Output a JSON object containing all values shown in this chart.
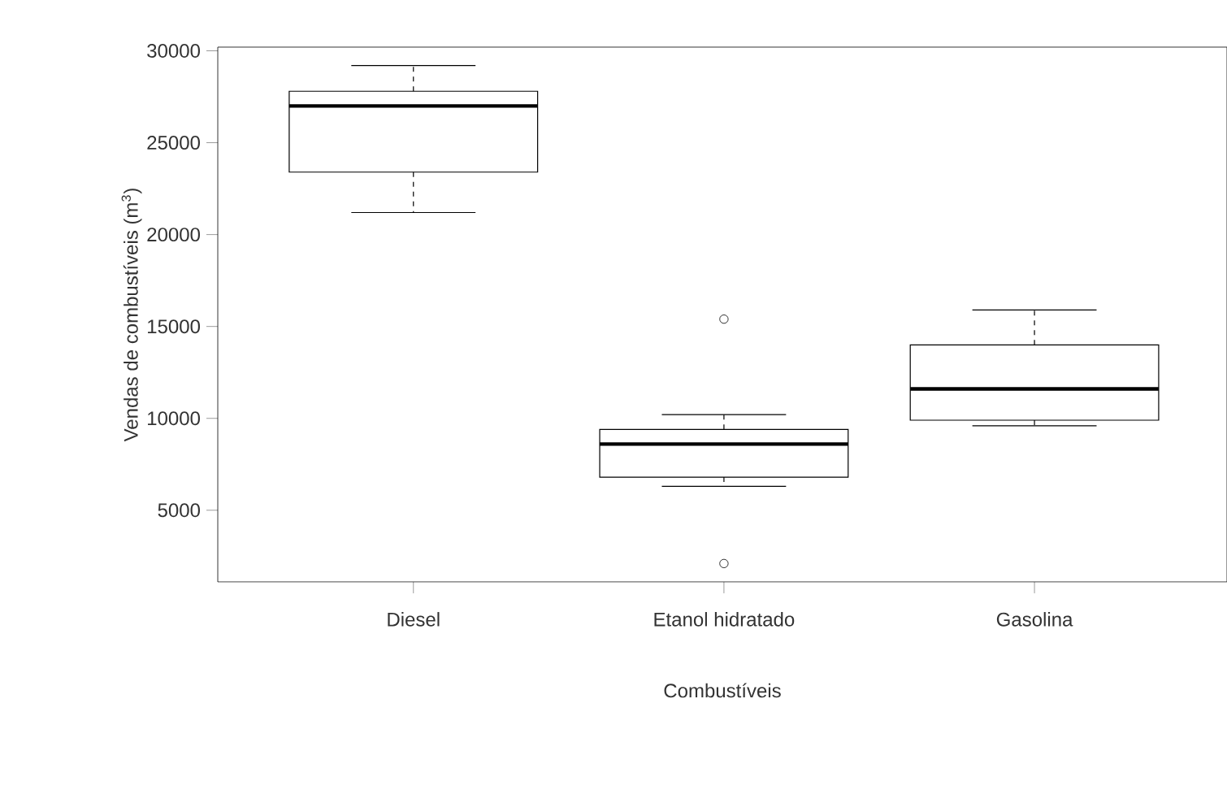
{
  "chart_data": {
    "type": "box",
    "xlabel": "Combustíveis",
    "ylabel": "Vendas de combustíveis (m$^{3}$)",
    "categories": [
      "Diesel",
      "Etanol hidratado",
      "Gasolina"
    ],
    "boxes": [
      {
        "low": 21200,
        "q1": 23400,
        "median": 27000,
        "q3": 27800,
        "high": 29200
      },
      {
        "low": 6300,
        "q1": 6800,
        "median": 8600,
        "q3": 9400,
        "high": 10200,
        "outliers": [
          15400,
          2100
        ]
      },
      {
        "low": 9600,
        "q1": 9900,
        "median": 11600,
        "q3": 14000,
        "high": 15900
      }
    ],
    "ylim": [
      1100,
      30200
    ],
    "yticks": [
      5000,
      10000,
      15000,
      20000,
      25000,
      30000
    ]
  }
}
